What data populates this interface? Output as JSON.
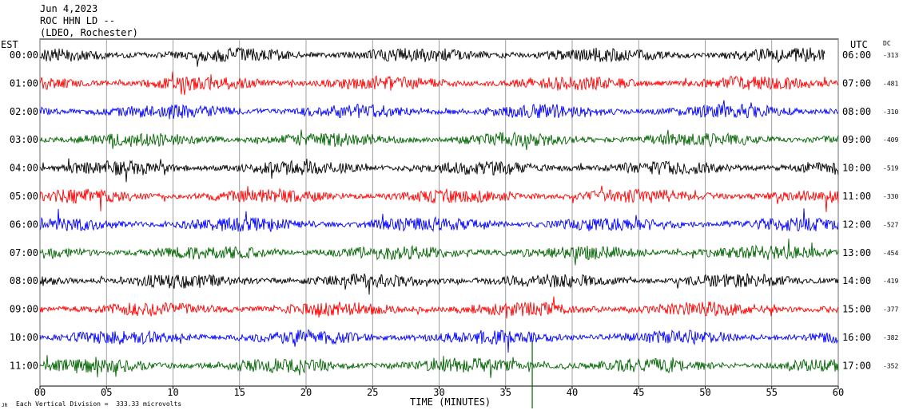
{
  "header": {
    "date": "Jun 4,2023",
    "station": "ROC HHN LD --",
    "network": "(LDEO, Rochester)"
  },
  "left_axis_label": "EST",
  "right_axis_label": "UTC",
  "dc_label": "DC",
  "footer": {
    "scale_note": "Each Vertical Division =  333.33 microvolts",
    "corner_mark": "JR"
  },
  "chart_data": {
    "type": "line",
    "xlabel": "TIME (MINUTES)",
    "xlim": [
      0,
      60
    ],
    "xticks": [
      "00",
      "05",
      "10",
      "15",
      "20",
      "25",
      "30",
      "35",
      "40",
      "45",
      "50",
      "55",
      "60"
    ],
    "colors": [
      "#000000",
      "#ff0000",
      "#0000ff",
      "#006400"
    ],
    "rows": [
      {
        "est": "00:00",
        "utc": "06:00",
        "dc": "-313"
      },
      {
        "est": "01:00",
        "utc": "07:00",
        "dc": "-481"
      },
      {
        "est": "02:00",
        "utc": "08:00",
        "dc": "-310"
      },
      {
        "est": "03:00",
        "utc": "09:00",
        "dc": "-409"
      },
      {
        "est": "04:00",
        "utc": "10:00",
        "dc": "-519"
      },
      {
        "est": "05:00",
        "utc": "11:00",
        "dc": "-330"
      },
      {
        "est": "06:00",
        "utc": "12:00",
        "dc": "-527"
      },
      {
        "est": "07:00",
        "utc": "13:00",
        "dc": "-454"
      },
      {
        "est": "08:00",
        "utc": "14:00",
        "dc": "-419"
      },
      {
        "est": "09:00",
        "utc": "15:00",
        "dc": "-377"
      },
      {
        "est": "10:00",
        "utc": "16:00",
        "dc": "-382"
      },
      {
        "est": "11:00",
        "utc": "17:00",
        "dc": "-352"
      }
    ]
  }
}
